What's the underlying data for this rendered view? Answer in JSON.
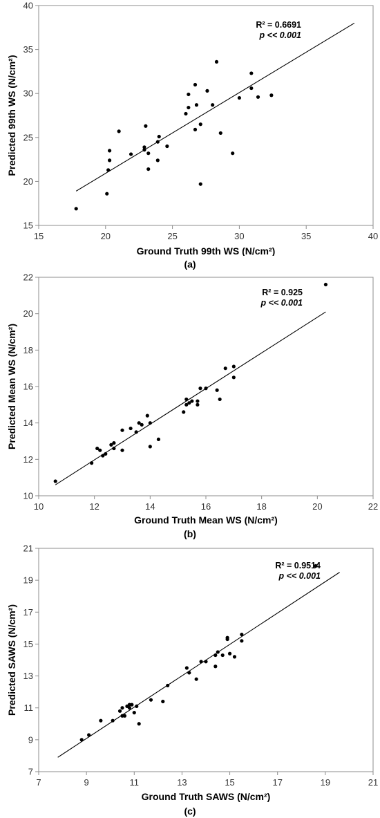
{
  "chart_data": [
    {
      "type": "scatter",
      "caption": "(a)",
      "xlabel": "Ground Truth 99th WS (N/cm²)",
      "ylabel": "Predicted 99th WS (N/cm²)",
      "xlim": [
        15,
        40
      ],
      "ylim": [
        15,
        40
      ],
      "xticks": [
        15,
        20,
        25,
        30,
        35,
        40
      ],
      "yticks": [
        15,
        20,
        25,
        30,
        35,
        40
      ],
      "r2_text": "R² = 0.6691",
      "p_text": "p << 0.001",
      "grid": false,
      "trendline": {
        "x": [
          17.8,
          38.6
        ],
        "y": [
          18.9,
          38.0
        ]
      },
      "points": [
        [
          17.8,
          16.9
        ],
        [
          20.1,
          18.6
        ],
        [
          20.2,
          21.3
        ],
        [
          20.3,
          22.4
        ],
        [
          20.3,
          23.5
        ],
        [
          21.0,
          25.7
        ],
        [
          21.9,
          23.1
        ],
        [
          22.9,
          23.6
        ],
        [
          22.9,
          23.9
        ],
        [
          23.0,
          26.3
        ],
        [
          23.2,
          21.4
        ],
        [
          23.2,
          23.2
        ],
        [
          23.9,
          22.4
        ],
        [
          23.9,
          24.5
        ],
        [
          24.0,
          25.1
        ],
        [
          24.6,
          24.0
        ],
        [
          26.0,
          27.7
        ],
        [
          26.2,
          28.4
        ],
        [
          26.2,
          29.9
        ],
        [
          26.7,
          31.0
        ],
        [
          26.7,
          25.9
        ],
        [
          26.8,
          28.7
        ],
        [
          27.1,
          26.5
        ],
        [
          27.1,
          19.7
        ],
        [
          27.6,
          30.3
        ],
        [
          28.0,
          28.7
        ],
        [
          28.3,
          33.6
        ],
        [
          28.6,
          25.5
        ],
        [
          29.5,
          23.2
        ],
        [
          30.0,
          29.5
        ],
        [
          30.9,
          30.6
        ],
        [
          30.9,
          32.3
        ],
        [
          31.4,
          29.6
        ],
        [
          32.4,
          29.8
        ]
      ]
    },
    {
      "type": "scatter",
      "caption": "(b)",
      "xlabel": "Ground Truth Mean WS (N/cm²)",
      "ylabel": "Predicted Mean WS (N/cm²)",
      "xlim": [
        10,
        22
      ],
      "ylim": [
        10,
        22
      ],
      "xticks": [
        10,
        12,
        14,
        16,
        18,
        20,
        22
      ],
      "yticks": [
        10,
        12,
        14,
        16,
        18,
        20,
        22
      ],
      "r2_text": "R² = 0.925",
      "p_text": "p << 0.001",
      "grid": false,
      "trendline": {
        "x": [
          10.6,
          20.3
        ],
        "y": [
          10.6,
          20.1
        ]
      },
      "points": [
        [
          10.6,
          10.8
        ],
        [
          11.9,
          11.8
        ],
        [
          12.1,
          12.6
        ],
        [
          12.2,
          12.5
        ],
        [
          12.3,
          12.2
        ],
        [
          12.4,
          12.3
        ],
        [
          12.6,
          12.8
        ],
        [
          12.7,
          12.6
        ],
        [
          12.7,
          12.9
        ],
        [
          13.0,
          12.5
        ],
        [
          13.0,
          13.6
        ],
        [
          13.3,
          13.7
        ],
        [
          13.5,
          13.5
        ],
        [
          13.6,
          14.0
        ],
        [
          13.7,
          13.9
        ],
        [
          13.9,
          14.4
        ],
        [
          14.0,
          12.7
        ],
        [
          14.0,
          14.0
        ],
        [
          14.3,
          13.1
        ],
        [
          15.2,
          14.6
        ],
        [
          15.3,
          15.3
        ],
        [
          15.3,
          15.0
        ],
        [
          15.4,
          15.1
        ],
        [
          15.5,
          15.2
        ],
        [
          15.7,
          15.0
        ],
        [
          15.7,
          15.2
        ],
        [
          15.8,
          15.9
        ],
        [
          16.0,
          15.9
        ],
        [
          16.4,
          15.8
        ],
        [
          16.5,
          15.3
        ],
        [
          16.7,
          17.0
        ],
        [
          17.0,
          16.5
        ],
        [
          17.0,
          17.1
        ],
        [
          20.3,
          21.6
        ]
      ]
    },
    {
      "type": "scatter",
      "caption": "(c)",
      "xlabel": "Ground Truth SAWS (N/cm²)",
      "ylabel": "Predicted SAWS (N/cm²)",
      "xlim": [
        7,
        21
      ],
      "ylim": [
        7,
        21
      ],
      "xticks": [
        7,
        9,
        11,
        13,
        15,
        17,
        19,
        21
      ],
      "yticks": [
        7,
        9,
        11,
        13,
        15,
        17,
        19,
        21
      ],
      "r2_text": "R² = 0.9514",
      "p_text": "p << 0.001",
      "grid": false,
      "trendline": {
        "x": [
          7.8,
          19.6
        ],
        "y": [
          7.9,
          19.5
        ]
      },
      "points": [
        [
          8.8,
          9.0
        ],
        [
          9.1,
          9.3
        ],
        [
          9.6,
          10.2
        ],
        [
          10.1,
          10.2
        ],
        [
          10.4,
          10.8
        ],
        [
          10.5,
          10.5
        ],
        [
          10.5,
          11.0
        ],
        [
          10.6,
          10.5
        ],
        [
          10.7,
          11.1
        ],
        [
          10.8,
          11.0
        ],
        [
          10.8,
          11.2
        ],
        [
          10.9,
          11.2
        ],
        [
          11.0,
          10.7
        ],
        [
          11.1,
          11.1
        ],
        [
          11.2,
          10.0
        ],
        [
          11.7,
          11.5
        ],
        [
          12.2,
          11.4
        ],
        [
          12.4,
          12.4
        ],
        [
          13.2,
          13.5
        ],
        [
          13.3,
          13.2
        ],
        [
          13.6,
          12.8
        ],
        [
          13.8,
          13.9
        ],
        [
          14.0,
          13.9
        ],
        [
          14.4,
          13.6
        ],
        [
          14.4,
          14.3
        ],
        [
          14.5,
          14.5
        ],
        [
          14.7,
          14.3
        ],
        [
          14.9,
          15.3
        ],
        [
          14.9,
          15.4
        ],
        [
          15.0,
          14.4
        ],
        [
          15.2,
          14.2
        ],
        [
          15.5,
          15.2
        ],
        [
          15.5,
          15.6
        ],
        [
          18.6,
          19.9
        ]
      ]
    }
  ]
}
